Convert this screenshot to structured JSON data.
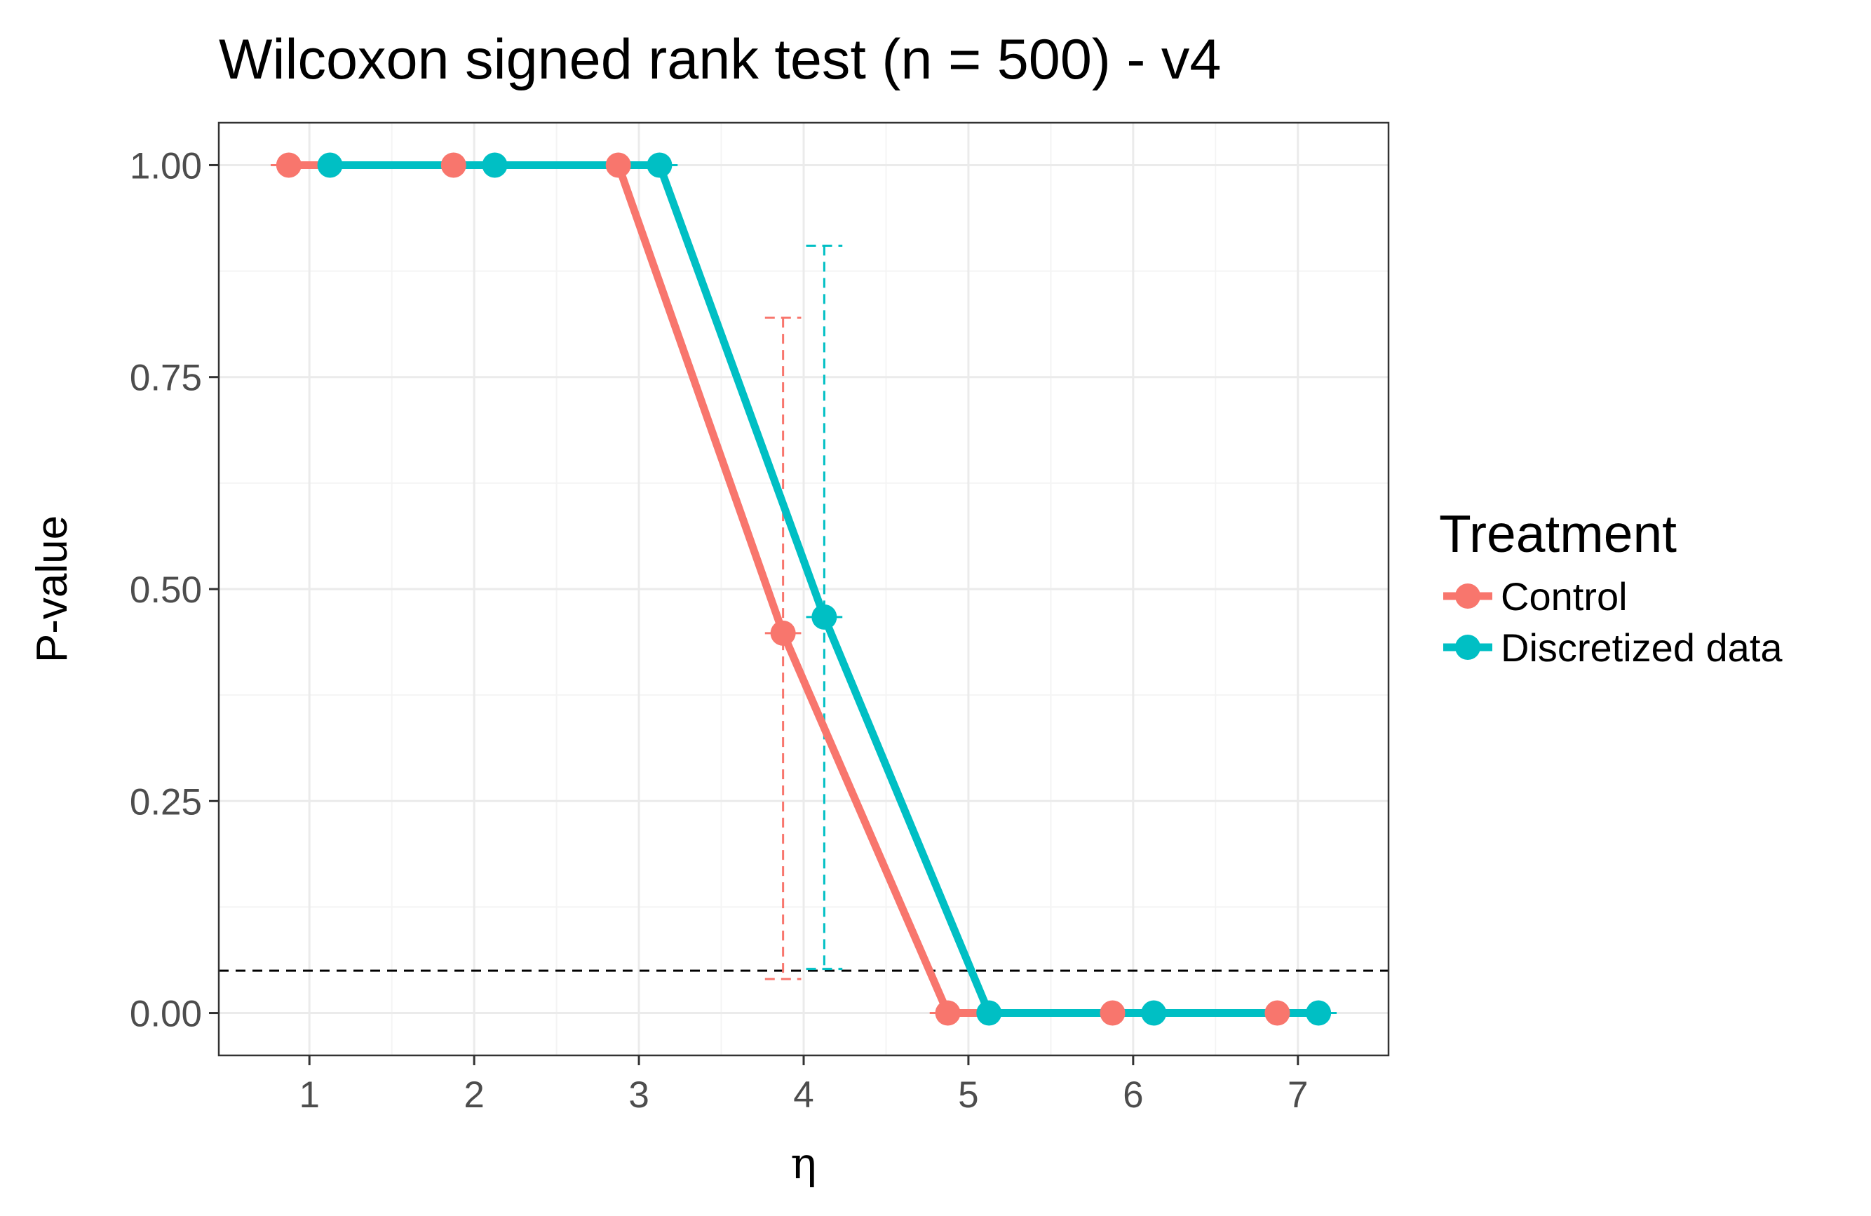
{
  "chart_data": {
    "type": "line",
    "title": "Wilcoxon signed rank test (n = 500) - v4",
    "xlabel": "η",
    "ylabel": "P-value",
    "x_ticks": [
      "1",
      "2",
      "3",
      "4",
      "5",
      "6",
      "7"
    ],
    "y_ticks": [
      "0.00",
      "0.25",
      "0.50",
      "0.75",
      "1.00"
    ],
    "xlim": [
      0.45,
      7.55
    ],
    "ylim": [
      -0.05,
      1.05
    ],
    "grid": true,
    "legend": {
      "title": "Treatment",
      "position": "right"
    },
    "reference_line": {
      "y": 0.05,
      "style": "dashed",
      "color": "#000000"
    },
    "series": [
      {
        "name": "Control",
        "color": "#F8766D",
        "x": [
          1,
          2,
          3,
          4,
          5,
          6,
          7
        ],
        "y": [
          1.0,
          1.0,
          1.0,
          0.448,
          0.0,
          0.0,
          0.0
        ],
        "error_bars": [
          {
            "x": 4,
            "low": 0.04,
            "high": 0.82
          }
        ]
      },
      {
        "name": "Discretized data",
        "color": "#00BFC4",
        "x": [
          1,
          2,
          3,
          4,
          5,
          6,
          7
        ],
        "y": [
          1.0,
          1.0,
          1.0,
          0.467,
          0.0,
          0.0,
          0.0
        ],
        "error_bars": [
          {
            "x": 4,
            "low": 0.052,
            "high": 0.905
          }
        ]
      }
    ]
  }
}
